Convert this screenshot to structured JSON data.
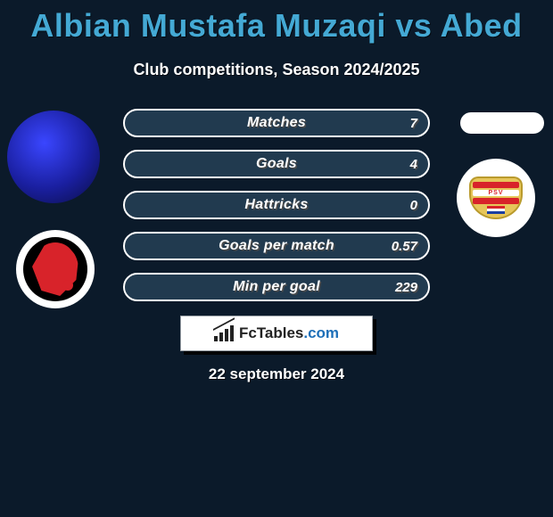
{
  "header": {
    "title": "Albian Mustafa Muzaqi vs Abed",
    "title_color": "#44a9d4",
    "title_fontsize": 36,
    "subtitle": "Club competitions, Season 2024/2025",
    "subtitle_fontsize": 18
  },
  "background_color": "#0b1a2a",
  "stats": {
    "track_border_color": "#ffffff",
    "fill_color": "#213a4f",
    "label_fontsize": 16,
    "value_fontsize": 15,
    "text_shadow_color": "#4a4a4a",
    "rows": [
      {
        "label": "Matches",
        "left": "",
        "right": "7",
        "fill_pct": 100
      },
      {
        "label": "Goals",
        "left": "",
        "right": "4",
        "fill_pct": 100
      },
      {
        "label": "Hattricks",
        "left": "",
        "right": "0",
        "fill_pct": 100
      },
      {
        "label": "Goals per match",
        "left": "",
        "right": "0.57",
        "fill_pct": 100
      },
      {
        "label": "Min per goal",
        "left": "",
        "right": "229",
        "fill_pct": 100
      }
    ]
  },
  "left_player": {
    "avatar_name": "player-avatar-muzaqi",
    "club_name": "helmond-sport",
    "club_colors": {
      "ring": "#ffffff",
      "disc": "#000000",
      "accent": "#d8232a"
    }
  },
  "right_player": {
    "avatar_name": "player-avatar-abed",
    "club_name": "psv",
    "club_colors": {
      "shield": "#e6c65a",
      "stripe": "#d8232a",
      "white": "#ffffff"
    }
  },
  "brand": {
    "text_prefix": "FcTables",
    "text_suffix": ".com",
    "box_bg": "#ffffff",
    "box_border": "#9aa0a6"
  },
  "date": "22 september 2024"
}
